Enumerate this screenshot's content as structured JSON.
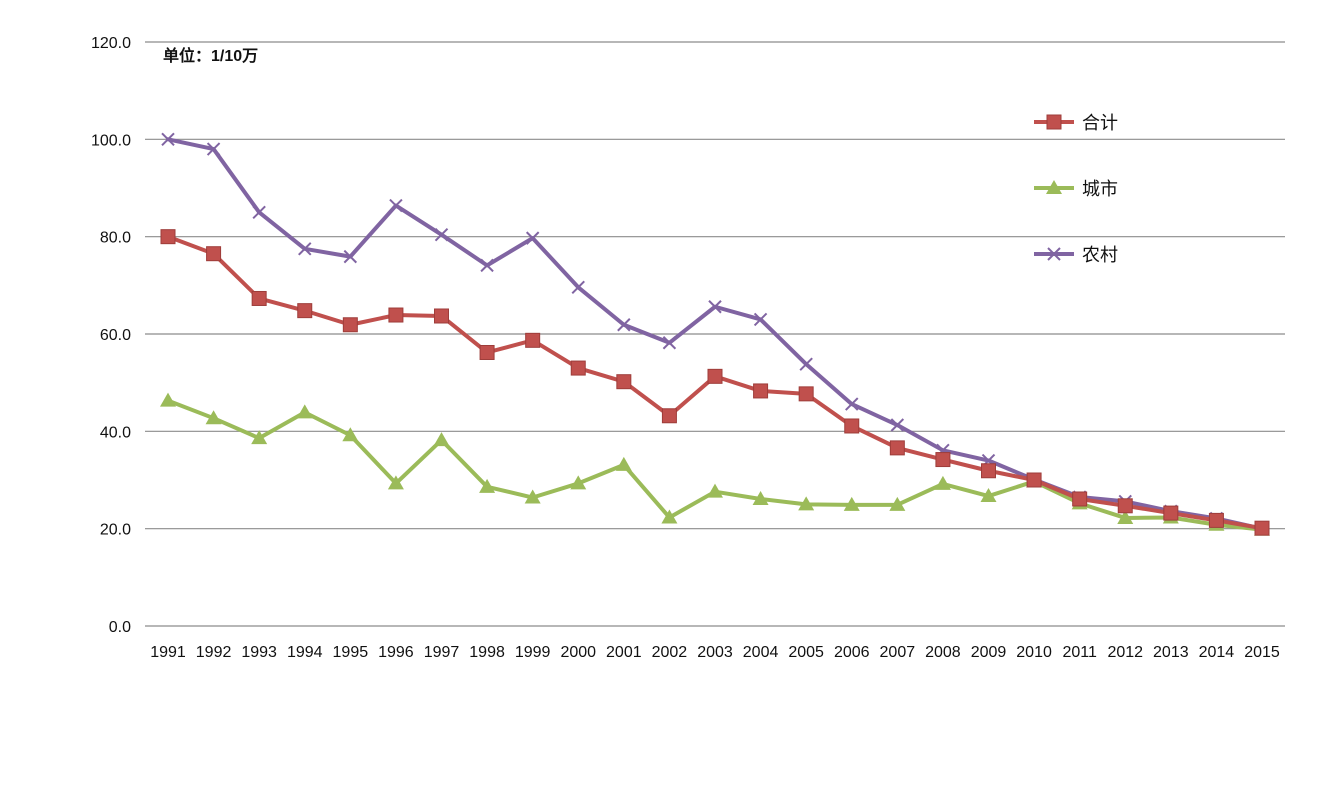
{
  "chart_data": {
    "type": "line",
    "unit_label": "单位：1/10万",
    "x": [
      "1991",
      "1992",
      "1993",
      "1994",
      "1995",
      "1996",
      "1997",
      "1998",
      "1999",
      "2000",
      "2001",
      "2002",
      "2003",
      "2004",
      "2005",
      "2006",
      "2007",
      "2008",
      "2009",
      "2010",
      "2011",
      "2012",
      "2013",
      "2014",
      "2015"
    ],
    "ylim": [
      0,
      120
    ],
    "y_ticks": [
      "0.0",
      "20.0",
      "40.0",
      "60.0",
      "80.0",
      "100.0",
      "120.0"
    ],
    "grid": true,
    "legend_position": "right",
    "series": [
      {
        "name": "合计",
        "color": "#c0504d",
        "marker": "square",
        "values": [
          80.0,
          76.5,
          67.3,
          64.8,
          61.9,
          63.9,
          63.7,
          56.2,
          58.7,
          53.0,
          50.2,
          43.2,
          51.3,
          48.3,
          47.7,
          41.1,
          36.6,
          34.2,
          31.9,
          30.0,
          26.1,
          24.7,
          23.2,
          21.7,
          20.1
        ]
      },
      {
        "name": "城市",
        "color": "#9bbb59",
        "marker": "triangle",
        "values": [
          46.3,
          42.7,
          38.6,
          43.9,
          39.2,
          29.3,
          38.2,
          28.6,
          26.4,
          29.3,
          33.1,
          22.3,
          27.6,
          26.1,
          25.0,
          24.9,
          24.9,
          29.2,
          26.7,
          29.7,
          25.2,
          22.2,
          22.3,
          20.8,
          19.8
        ]
      },
      {
        "name": "农村",
        "color": "#8064a2",
        "marker": "x",
        "values": [
          100.0,
          98.0,
          85.0,
          77.5,
          75.9,
          86.4,
          80.4,
          74.1,
          79.7,
          69.6,
          61.9,
          58.2,
          65.6,
          63.0,
          53.8,
          45.6,
          41.3,
          36.1,
          34.0,
          30.1,
          26.5,
          25.6,
          23.6,
          22.1,
          20.0
        ]
      }
    ]
  }
}
